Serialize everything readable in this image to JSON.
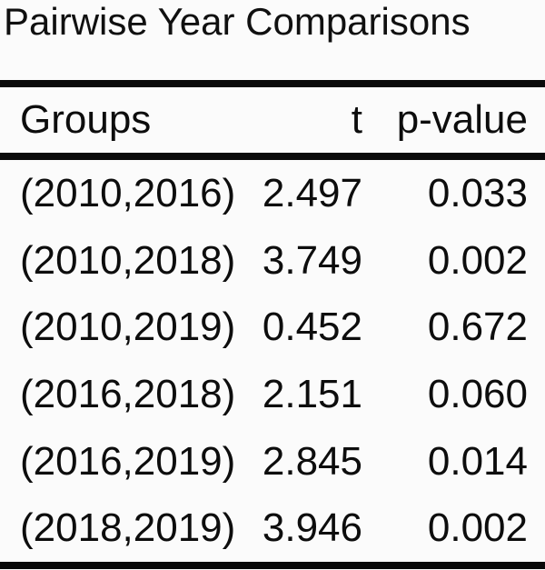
{
  "chart_data": {
    "type": "table",
    "title": "Pairwise Year Comparisons",
    "columns": [
      "Groups",
      "t",
      "p-value"
    ],
    "rows": [
      [
        "(2010,2016)",
        "2.497",
        "0.033"
      ],
      [
        "(2010,2018)",
        "3.749",
        "0.002"
      ],
      [
        "(2010,2019)",
        "0.452",
        "0.672"
      ],
      [
        "(2016,2018)",
        "2.151",
        "0.060"
      ],
      [
        "(2016,2019)",
        "2.845",
        "0.014"
      ],
      [
        "(2018,2019)",
        "3.946",
        "0.002"
      ]
    ],
    "layout": {
      "column_align": [
        "left",
        "right",
        "right"
      ],
      "rules": [
        "above-header",
        "below-header",
        "bottom"
      ],
      "grid": "off",
      "legend": "none"
    }
  },
  "colors": {
    "background": "#fbfbfb",
    "text": "#0d0d0d",
    "rule": "#0a0a0a"
  }
}
